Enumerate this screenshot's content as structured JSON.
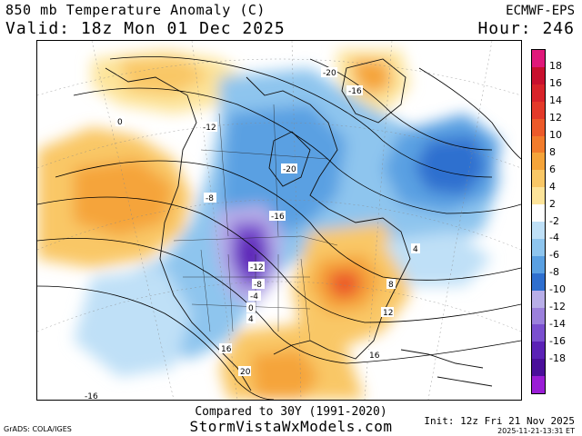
{
  "header": {
    "title": "850 mb Temperature Anomaly (C)",
    "valid": "Valid: 18z Mon 01 Dec 2025",
    "model": "ECMWF-EPS",
    "hour": "Hour: 246"
  },
  "colorbar": {
    "labels": [
      "18",
      "16",
      "14",
      "12",
      "10",
      "8",
      "6",
      "4",
      "2",
      "-2",
      "-4",
      "-6",
      "-8",
      "-10",
      "-12",
      "-14",
      "-16",
      "-18"
    ],
    "colors": [
      "#e0187a",
      "#c8102e",
      "#d8232a",
      "#e33a2a",
      "#ec5a2a",
      "#f27c2c",
      "#f5a43a",
      "#f9c766",
      "#fde49a",
      "#ffffff",
      "#bfe0f7",
      "#8ec5ee",
      "#5aa0e2",
      "#2f6fcf",
      "#b8aee8",
      "#9b80dc",
      "#7a4fcf",
      "#5b22b6",
      "#4a0f9a",
      "#9a1dd6"
    ]
  },
  "contour_labels": [
    "-20",
    "-16",
    "-12",
    "0",
    "-20",
    "-8",
    "-16",
    "-12",
    "-8",
    "-4",
    "0",
    "4",
    "8",
    "12",
    "16",
    "20",
    "4",
    "16",
    "-16"
  ],
  "footer": {
    "compared": "Compared to 30Y (1991-2020)",
    "site": "StormVistaWxModels.com",
    "grads": "GrADS: COLA/IGES",
    "init": "Init: 12z Fri 21 Nov 2025",
    "stamp": "2025-11-21-13:31 ET"
  }
}
